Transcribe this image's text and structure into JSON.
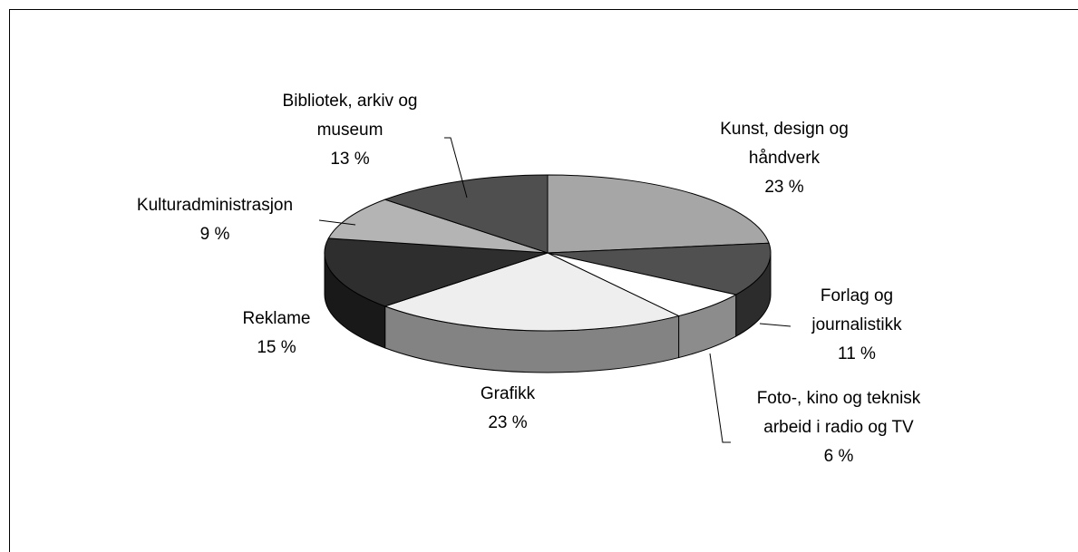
{
  "chart_data": {
    "type": "pie",
    "categories": [
      "Kunst, design og håndverk",
      "Forlag og journalistikk",
      "Foto-, kino og teknisk arbeid i radio og TV",
      "Grafikk",
      "Reklame",
      "Kulturadministrasjon",
      "Bibliotek, arkiv og museum"
    ],
    "values": [
      23,
      11,
      6,
      23,
      15,
      9,
      13
    ],
    "value_labels": [
      "23 %",
      "11 %",
      "6 %",
      "23 %",
      "15 %",
      "9 %",
      "13 %"
    ],
    "colors": [
      "#a6a6a6",
      "#505050",
      "#ffffff",
      "#eeeeee",
      "#2e2e2e",
      "#b4b4b4",
      "#4f4f4f"
    ]
  }
}
